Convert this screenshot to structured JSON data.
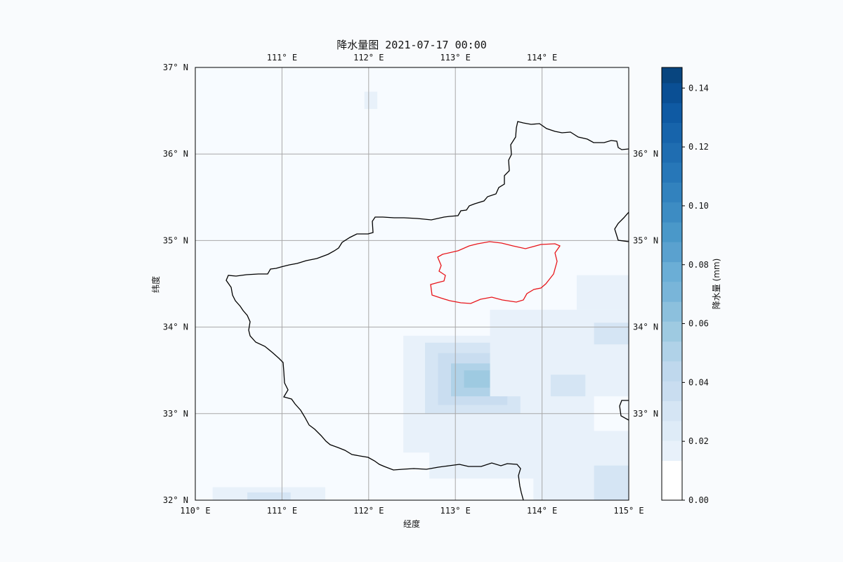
{
  "map": {
    "title": "降水量图 2021-07-17 00:00",
    "xlabel": "经度",
    "ylabel": "纬度",
    "extent": {
      "lon": [
        110,
        115
      ],
      "lat": [
        32,
        37
      ]
    },
    "lon_ticks": [
      110,
      111,
      112,
      113,
      114,
      115
    ],
    "lat_ticks": [
      32,
      33,
      34,
      35,
      36,
      37
    ],
    "lon_tick_labels": [
      "110° E",
      "111° E",
      "112° E",
      "113° E",
      "114° E",
      "115° E"
    ],
    "lat_tick_labels": [
      "32° N",
      "33° N",
      "34° N",
      "35° N",
      "36° N",
      "37° N"
    ],
    "top_tick_labels": [
      "111° E",
      "112° E",
      "113° E",
      "114° E"
    ],
    "right_tick_labels": [
      "33° N",
      "34° N",
      "35° N",
      "36° N"
    ],
    "grid": true,
    "boundary_color": "#000000",
    "highlight_color": "#e8161b",
    "precip_cells": [
      {
        "lon": [
          111.95,
          112.1
        ],
        "lat": [
          36.52,
          36.72
        ],
        "value": 0.02
      },
      {
        "lon": [
          110.2,
          111.5
        ],
        "lat": [
          32.0,
          32.15
        ],
        "value": 0.02
      },
      {
        "lon": [
          110.6,
          111.1
        ],
        "lat": [
          32.0,
          32.09
        ],
        "value": 0.03
      },
      {
        "lon": [
          112.4,
          114.6
        ],
        "lat": [
          32.55,
          33.9
        ],
        "value": 0.02
      },
      {
        "lon": [
          112.7,
          114.5
        ],
        "lat": [
          32.25,
          33.25
        ],
        "value": 0.02
      },
      {
        "lon": [
          112.65,
          113.75
        ],
        "lat": [
          33.0,
          33.82
        ],
        "value": 0.03
      },
      {
        "lon": [
          112.8,
          113.6
        ],
        "lat": [
          33.1,
          33.7
        ],
        "value": 0.04
      },
      {
        "lon": [
          112.95,
          113.5
        ],
        "lat": [
          33.2,
          33.58
        ],
        "value": 0.05
      },
      {
        "lon": [
          113.1,
          113.4
        ],
        "lat": [
          33.3,
          33.5
        ],
        "value": 0.06
      },
      {
        "lon": [
          113.4,
          115.0
        ],
        "lat": [
          33.2,
          34.2
        ],
        "value": 0.02
      },
      {
        "lon": [
          114.4,
          115.0
        ],
        "lat": [
          34.2,
          34.6
        ],
        "value": 0.02
      },
      {
        "lon": [
          114.6,
          115.0
        ],
        "lat": [
          33.8,
          34.05
        ],
        "value": 0.03
      },
      {
        "lon": [
          113.9,
          115.0
        ],
        "lat": [
          32.0,
          32.8
        ],
        "value": 0.02
      },
      {
        "lon": [
          114.6,
          115.0
        ],
        "lat": [
          32.0,
          32.4
        ],
        "value": 0.03
      },
      {
        "lon": [
          114.1,
          114.5
        ],
        "lat": [
          33.2,
          33.45
        ],
        "value": 0.03
      }
    ],
    "colorbar": {
      "label": "降水量 (mm)",
      "min": 0.0,
      "max": 0.147,
      "ticks": [
        0.0,
        0.02,
        0.04,
        0.06,
        0.08,
        0.1,
        0.12,
        0.14
      ],
      "tick_labels": [
        "0.00",
        "0.02",
        "0.04",
        "0.06",
        "0.08",
        "0.10",
        "0.12",
        "0.14"
      ],
      "levels": [
        0.0,
        0.0135,
        0.0203,
        0.027,
        0.0338,
        0.0405,
        0.0473,
        0.054,
        0.0608,
        0.0675,
        0.0743,
        0.081,
        0.0878,
        0.0945,
        0.1013,
        0.108,
        0.1148,
        0.1215,
        0.1283,
        0.135,
        0.1418,
        0.147
      ],
      "colors": [
        "#ffffff",
        "#e8f1fa",
        "#deebf7",
        "#d5e5f4",
        "#c9ddf0",
        "#bfd8ed",
        "#b0d2e8",
        "#9ecae1",
        "#8cc0dd",
        "#79b5d9",
        "#6baed6",
        "#5aa1cf",
        "#4a98c9",
        "#3d8cc3",
        "#3282be",
        "#2777b8",
        "#1f6db1",
        "#1764ab",
        "#0f5aa3",
        "#0a4f94",
        "#08457f",
        "#08306b"
      ]
    }
  }
}
